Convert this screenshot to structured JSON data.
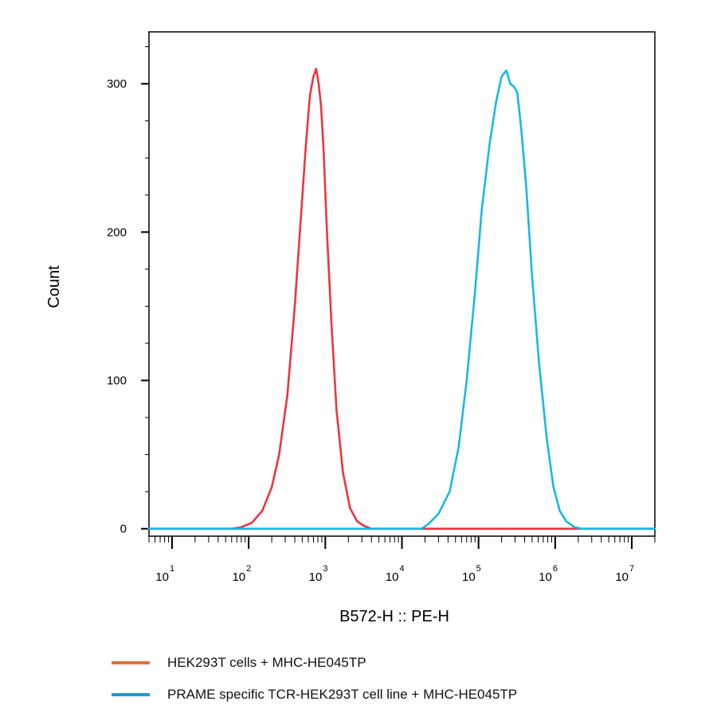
{
  "chart_data": {
    "type": "line",
    "xlabel": "B572-H :: PE-H",
    "ylabel": "Count",
    "x_scale": "log",
    "xlim": [
      5,
      20000000
    ],
    "ylim": [
      -5,
      335
    ],
    "x_ticks": [
      {
        "base": "10",
        "exp": "1",
        "value": 10
      },
      {
        "base": "10",
        "exp": "2",
        "value": 100
      },
      {
        "base": "10",
        "exp": "3",
        "value": 1000
      },
      {
        "base": "10",
        "exp": "4",
        "value": 10000
      },
      {
        "base": "10",
        "exp": "5",
        "value": 100000
      },
      {
        "base": "10",
        "exp": "6",
        "value": 1000000
      },
      {
        "base": "10",
        "exp": "7",
        "value": 10000000
      }
    ],
    "y_ticks": [
      0,
      100,
      200,
      300
    ],
    "grid": false,
    "legend_position": "bottom",
    "series": [
      {
        "name": "HEK293T cells + MHC-HE045TP",
        "color": "#e8373f",
        "legend_color": "#e0703a",
        "x": [
          5,
          60,
          80,
          110,
          150,
          200,
          250,
          320,
          400,
          480,
          560,
          630,
          700,
          760,
          820,
          880,
          950,
          1050,
          1200,
          1400,
          1700,
          2100,
          2600,
          3200,
          4000,
          5000,
          20000000
        ],
        "y": [
          0,
          0,
          1,
          4,
          12,
          28,
          50,
          90,
          150,
          210,
          260,
          292,
          305,
          310,
          300,
          285,
          255,
          200,
          140,
          80,
          38,
          14,
          5,
          2,
          0,
          0,
          0
        ]
      },
      {
        "name": "PRAME specific TCR-HEK293T cell line + MHC-HE045TP",
        "color": "#1ab8e4",
        "legend_color": "#1a9bd6",
        "x": [
          5,
          18000,
          22000,
          30000,
          42000,
          55000,
          70000,
          90000,
          110000,
          140000,
          170000,
          200000,
          230000,
          260000,
          290000,
          320000,
          360000,
          420000,
          500000,
          620000,
          780000,
          950000,
          1150000,
          1400000,
          1800000,
          2200000,
          20000000
        ],
        "y": [
          0,
          0,
          3,
          10,
          25,
          55,
          100,
          160,
          215,
          260,
          288,
          305,
          309,
          300,
          298,
          294,
          270,
          230,
          170,
          110,
          60,
          28,
          12,
          5,
          1,
          0,
          0
        ]
      }
    ]
  }
}
